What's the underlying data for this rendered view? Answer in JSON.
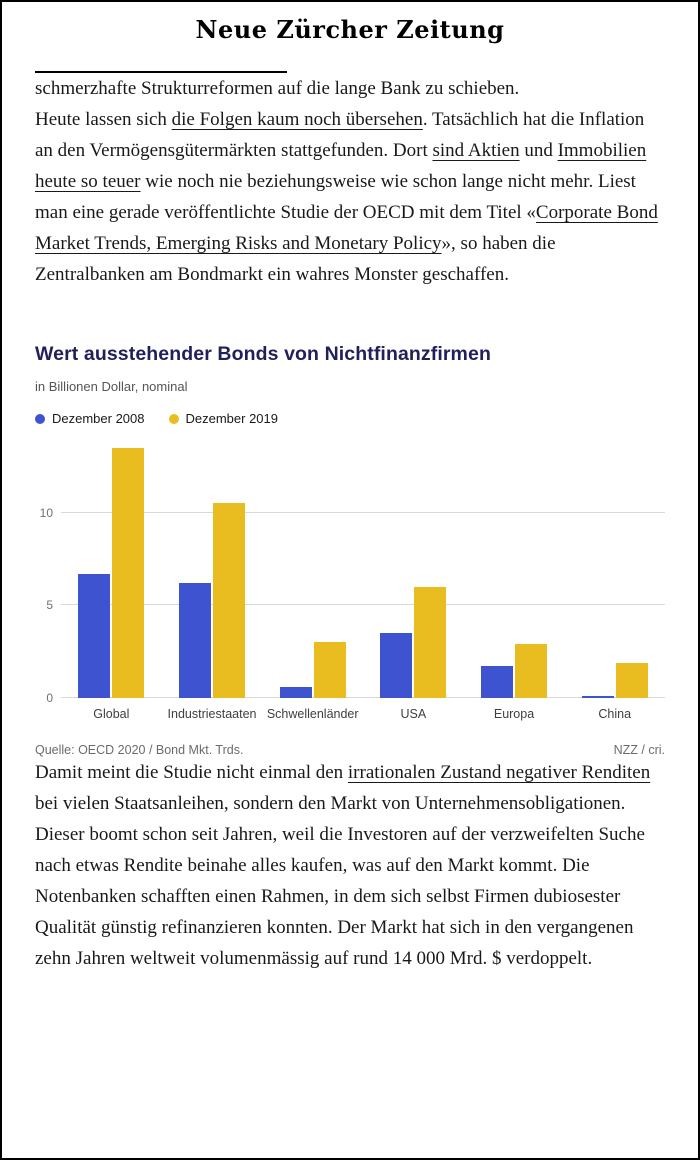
{
  "header": {
    "logo": "Neue Zürcher Zeitung"
  },
  "article": {
    "paragraph1": "schmerzhafte Strukturreformen auf die lange Bank zu schieben.",
    "paragraph2": [
      {
        "t": "Heute lassen sich ",
        "u": false
      },
      {
        "t": "die Folgen kaum noch übersehen",
        "u": true
      },
      {
        "t": ". Tatsächlich hat die Inflation an den Vermögensgütermärkten stattgefunden. Dort ",
        "u": false
      },
      {
        "t": "sind Aktien",
        "u": true
      },
      {
        "t": " und ",
        "u": false
      },
      {
        "t": "Immobilien heute so teuer",
        "u": true
      },
      {
        "t": " wie noch nie beziehungsweise wie schon lange nicht mehr. Liest man eine gerade veröffentlichte Studie der OECD mit dem Titel «",
        "u": false
      },
      {
        "t": "Corporate Bond Market Trends, Emerging Risks and Monetary Policy",
        "u": true
      },
      {
        "t": "», so haben die Zentralbanken am Bondmarkt ein wahres Monster geschaffen.",
        "u": false
      }
    ],
    "paragraph3": [
      {
        "t": "Damit meint die Studie nicht einmal den ",
        "u": false
      },
      {
        "t": "irrationalen Zustand negativer Renditen",
        "u": true
      },
      {
        "t": " bei vielen Staatsanleihen, sondern den Markt von Unternehmensobligationen. Dieser boomt schon seit Jahren, weil die Investoren auf der verzweifelten Suche nach etwas Rendite beinahe alles kaufen, was auf den Markt kommt. Die Notenbanken schafften einen Rahmen, in dem sich selbst Firmen dubiosester Qualität günstig refinanzieren konnten. Der Markt hat sich in den vergangenen zehn Jahren weltweit volumenmässig auf rund 14 000 Mrd. $ verdoppelt.",
        "u": false
      }
    ]
  },
  "chart": {
    "title": "Wert ausstehender Bonds von Nichtfinanzfirmen",
    "subtitle": "in Billionen Dollar, nominal",
    "source_left": "Quelle: OECD 2020 / Bond Mkt. Trds.",
    "source_right": "NZZ / cri."
  },
  "chart_data": {
    "type": "bar",
    "title": "Wert ausstehender Bonds von Nichtfinanzfirmen",
    "subtitle": "in Billionen Dollar, nominal",
    "categories": [
      "Global",
      "Industriestaaten",
      "Schwellenländer",
      "USA",
      "Europa",
      "China"
    ],
    "series": [
      {
        "name": "Dezember 2008",
        "color": "#3e53d0",
        "values": [
          6.7,
          6.2,
          0.6,
          3.5,
          1.7,
          0.1
        ]
      },
      {
        "name": "Dezember 2019",
        "color": "#e9bc1f",
        "values": [
          13.5,
          10.5,
          3.0,
          6.0,
          2.9,
          1.9
        ]
      }
    ],
    "yticks": [
      0,
      5,
      10
    ],
    "ylim": [
      0,
      13.6
    ],
    "grid": true,
    "legend_position": "top-left"
  }
}
